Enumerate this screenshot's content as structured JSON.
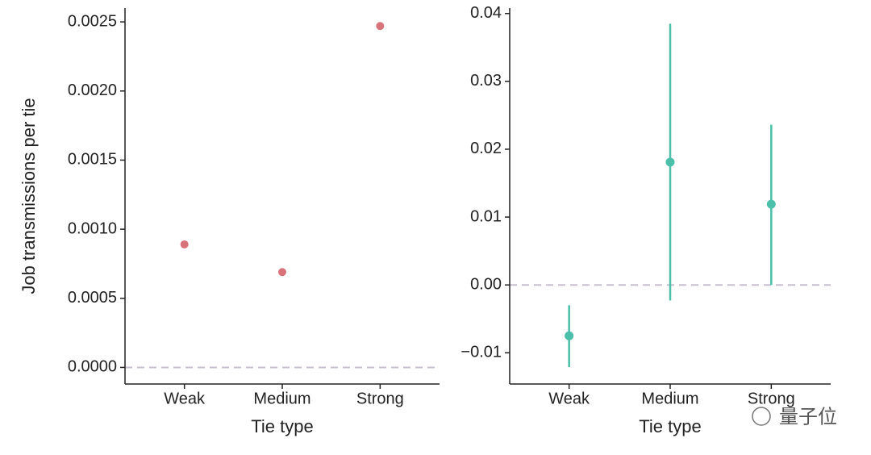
{
  "chart_data": [
    {
      "type": "scatter",
      "y_label": "Job transmissions per tie",
      "x_label": "Tie type",
      "categories": [
        "Weak",
        "Medium",
        "Strong"
      ],
      "values": [
        0.00089,
        0.00069,
        0.00247
      ],
      "color": "#d9737a",
      "ylim": [
        -0.00012,
        0.0026
      ],
      "yticks": [
        {
          "value": 0,
          "label": "0.0000"
        },
        0.0005,
        {
          "value": 0.001,
          "label": "0.0010"
        },
        0.0015,
        {
          "value": 0.002,
          "label": "0.0020"
        },
        0.0025
      ],
      "reference_line": 0,
      "reference_color": "#c8bfcf"
    },
    {
      "type": "errorbar",
      "x_label": "Tie type",
      "categories": [
        "Weak",
        "Medium",
        "Strong"
      ],
      "values": [
        -0.0075,
        0.0181,
        0.0119
      ],
      "ci_low": [
        -0.0121,
        -0.0023,
        0.0
      ],
      "ci_high": [
        -0.003,
        0.0385,
        0.0236
      ],
      "color": "#4bbfaa",
      "ylim": [
        -0.0146,
        0.0408
      ],
      "yticks": [
        {
          "value": -0.01,
          "label": "−0.01"
        },
        {
          "value": 0,
          "label": "0.00"
        },
        0.01,
        0.02,
        0.03,
        0.04
      ],
      "reference_line": 0,
      "reference_color": "#c8bfcf"
    }
  ],
  "watermark": "量子位"
}
